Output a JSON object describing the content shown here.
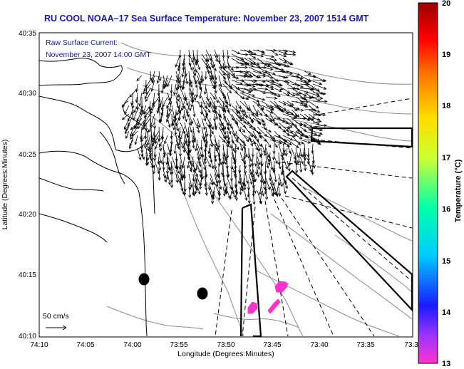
{
  "title": "RU COOL  NOAA–17  Sea Surface Temperature:  November 23, 2007 1514 GMT",
  "annotation": {
    "line1": "Raw Surface Current:",
    "line2": "November 23, 2007 14:00 GMT"
  },
  "scale_label": "50 cm/s",
  "xlabel": "Longitude (Degrees:Minutes)",
  "ylabel": "Latitude (Degrees:Minutes)",
  "x_ticks": [
    "74:10",
    "74:05",
    "74:00",
    "73:55",
    "73:50",
    "73:45",
    "73:40",
    "73:35",
    "73:3"
  ],
  "y_ticks": [
    "40:35",
    "40:30",
    "40:25",
    "40:20",
    "40:15",
    "40:10"
  ],
  "colorbar": {
    "label": "Temperature (°C)",
    "min": 13,
    "max": 20,
    "ticks": [
      "20",
      "19",
      "18",
      "17",
      "16",
      "15",
      "14",
      "13"
    ]
  },
  "colors": {
    "title_text": "#1a1aa6",
    "sst_patch": "#ff33cc",
    "land_contour": "#000000",
    "bathymetry": "#8c8c8c"
  }
}
